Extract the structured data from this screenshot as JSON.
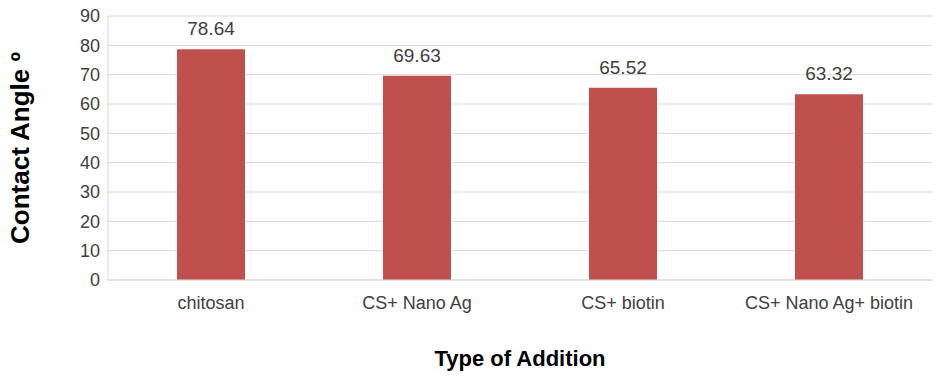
{
  "chart_data": {
    "type": "bar",
    "x_label": "Type of Addition",
    "y_label": "Contact Angle º",
    "categories": [
      "chitosan",
      "CS+ Nano Ag",
      "CS+ biotin",
      "CS+ Nano Ag+ biotin"
    ],
    "values": [
      78.64,
      69.63,
      65.52,
      63.32
    ],
    "color": "#c0504d",
    "ylim": [
      0,
      90
    ],
    "yticks": [
      0,
      10,
      20,
      30,
      40,
      50,
      60,
      70,
      80,
      90
    ],
    "grid": true,
    "data_labels": true
  }
}
